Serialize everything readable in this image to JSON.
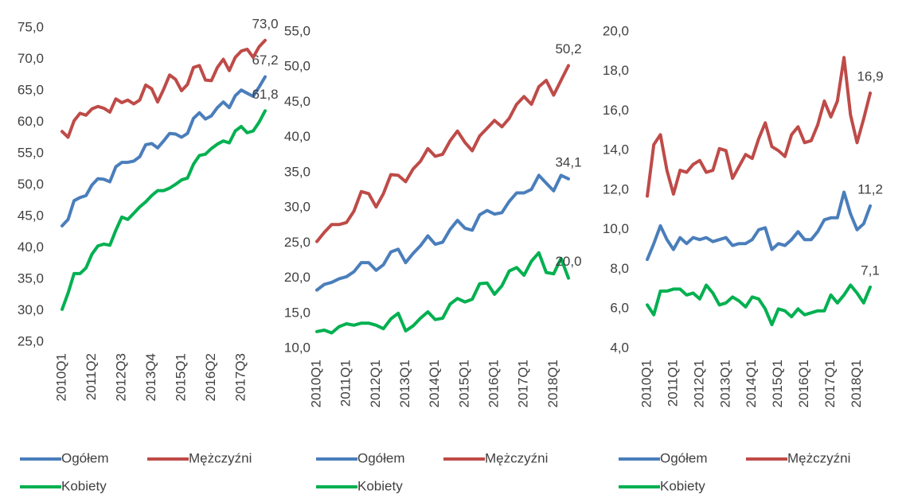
{
  "chart_data": [
    {
      "type": "line",
      "categories": [
        "2010Q1",
        null,
        null,
        null,
        null,
        "2011Q2",
        null,
        null,
        null,
        null,
        "2012Q3",
        null,
        null,
        null,
        null,
        "2013Q4",
        null,
        null,
        null,
        null,
        "2015Q1",
        null,
        null,
        null,
        null,
        "2016Q2",
        null,
        null,
        null,
        null,
        "2017Q3",
        null,
        null,
        null,
        null
      ],
      "ylim": [
        25,
        75
      ],
      "yticks": [
        {
          "value": 25,
          "label": "25,0"
        },
        {
          "value": 30,
          "label": "30,0"
        },
        {
          "value": 35,
          "label": "35,0"
        },
        {
          "value": 40,
          "label": "40,0"
        },
        {
          "value": 45,
          "label": "45,0"
        },
        {
          "value": 50,
          "label": "50,0"
        },
        {
          "value": 55,
          "label": "55,0"
        },
        {
          "value": 60,
          "label": "60,0"
        },
        {
          "value": 65,
          "label": "65,0"
        },
        {
          "value": 70,
          "label": "70,0"
        },
        {
          "value": 75,
          "label": "75,0"
        }
      ],
      "series": [
        {
          "name": "Ogółem",
          "color": "#4a7ebb",
          "values": [
            43.5,
            44.5,
            47.5,
            48,
            48.3,
            50,
            51,
            50.9,
            50.5,
            52.9,
            53.6,
            53.6,
            53.8,
            54.5,
            56.4,
            56.6,
            55.9,
            57,
            58.2,
            58.1,
            57.6,
            58.2,
            60.6,
            61.5,
            60.5,
            61,
            62.3,
            63.2,
            62.3,
            64.2,
            65.1,
            64.6,
            64.1,
            65.6,
            67.2
          ],
          "value_labels": [
            null,
            null,
            null,
            null,
            null,
            null,
            null,
            null,
            null,
            null,
            null,
            null,
            null,
            null,
            null,
            null,
            null,
            null,
            null,
            null,
            null,
            null,
            null,
            null,
            null,
            null,
            null,
            null,
            null,
            null,
            null,
            null,
            null,
            null,
            "67,2"
          ]
        },
        {
          "name": "Mężczyźni",
          "color": "#be4b48",
          "values": [
            58.5,
            57.6,
            60.2,
            61.4,
            61.1,
            62.1,
            62.5,
            62.2,
            61.6,
            63.7,
            63.1,
            63.5,
            62.9,
            63.5,
            65.9,
            65.3,
            63.2,
            65.2,
            67.5,
            66.8,
            65,
            66,
            68.7,
            69,
            66.7,
            66.6,
            68.7,
            70,
            68.2,
            70.3,
            71.3,
            71.6,
            70.3,
            72,
            73.0
          ],
          "value_labels": [
            null,
            null,
            null,
            null,
            null,
            null,
            null,
            null,
            null,
            null,
            null,
            null,
            null,
            null,
            null,
            null,
            null,
            null,
            null,
            null,
            null,
            null,
            null,
            null,
            null,
            null,
            null,
            null,
            null,
            null,
            null,
            null,
            null,
            null,
            "73,0"
          ]
        },
        {
          "name": "Kobiety",
          "color": "#00b050",
          "values": [
            30.2,
            32.8,
            35.9,
            35.9,
            36.8,
            39,
            40.3,
            40.6,
            40.4,
            42.8,
            44.9,
            44.5,
            45.5,
            46.5,
            47.3,
            48.3,
            49.1,
            49.1,
            49.5,
            50.1,
            50.8,
            51.1,
            53.3,
            54.7,
            54.9,
            55.8,
            56.5,
            57,
            56.7,
            58.6,
            59.3,
            58.3,
            58.6,
            60,
            61.8
          ],
          "value_labels": [
            null,
            null,
            null,
            null,
            null,
            null,
            null,
            null,
            null,
            null,
            null,
            null,
            null,
            null,
            null,
            null,
            null,
            null,
            null,
            null,
            null,
            null,
            null,
            null,
            null,
            null,
            null,
            null,
            null,
            null,
            null,
            null,
            null,
            null,
            "61,8"
          ]
        }
      ]
    },
    {
      "type": "line",
      "categories": [
        "2010Q1",
        null,
        null,
        null,
        "2011Q1",
        null,
        null,
        null,
        "2012Q1",
        null,
        null,
        null,
        "2013Q1",
        null,
        null,
        null,
        "2014Q1",
        null,
        null,
        null,
        "2015Q1",
        null,
        null,
        null,
        "2016Q1",
        null,
        null,
        null,
        "2017Q1",
        null,
        null,
        null,
        "2018Q1",
        null,
        null
      ],
      "ylim": [
        10,
        55
      ],
      "yticks": [
        {
          "value": 10,
          "label": "10,0"
        },
        {
          "value": 15,
          "label": "15,0"
        },
        {
          "value": 20,
          "label": "20,0"
        },
        {
          "value": 25,
          "label": "25,0"
        },
        {
          "value": 30,
          "label": "30,0"
        },
        {
          "value": 35,
          "label": "35,0"
        },
        {
          "value": 40,
          "label": "40,0"
        },
        {
          "value": 45,
          "label": "45,0"
        },
        {
          "value": 50,
          "label": "50,0"
        },
        {
          "value": 55,
          "label": "55,0"
        }
      ],
      "series": [
        {
          "name": "Ogółem",
          "color": "#4a7ebb",
          "values": [
            18.3,
            19.1,
            19.4,
            19.9,
            20.2,
            20.9,
            22.2,
            22.2,
            21.1,
            21.9,
            23.7,
            24.1,
            22.2,
            23.5,
            24.6,
            26,
            24.8,
            25.1,
            26.9,
            28.2,
            27.1,
            26.8,
            29,
            29.6,
            29.1,
            29.3,
            30.9,
            32.1,
            32.1,
            32.6,
            34.6,
            33.5,
            32.4,
            34.6,
            34.1
          ],
          "value_labels": [
            null,
            null,
            null,
            null,
            null,
            null,
            null,
            null,
            null,
            null,
            null,
            null,
            null,
            null,
            null,
            null,
            null,
            null,
            null,
            null,
            null,
            null,
            null,
            null,
            null,
            null,
            null,
            null,
            null,
            null,
            null,
            null,
            null,
            null,
            "34,1"
          ]
        },
        {
          "name": "Mężczyźni",
          "color": "#be4b48",
          "values": [
            25.2,
            26.5,
            27.6,
            27.6,
            27.9,
            29.5,
            32.3,
            32,
            30.1,
            32,
            34.7,
            34.6,
            33.7,
            35.5,
            36.6,
            38.4,
            37.3,
            37.6,
            39.5,
            40.9,
            39.3,
            38.1,
            40.2,
            41.3,
            42.4,
            41.5,
            42.7,
            44.7,
            45.8,
            44.7,
            47.2,
            48.1,
            46,
            48.1,
            50.2
          ],
          "value_labels": [
            null,
            null,
            null,
            null,
            null,
            null,
            null,
            null,
            null,
            null,
            null,
            null,
            null,
            null,
            null,
            null,
            null,
            null,
            null,
            null,
            null,
            null,
            null,
            null,
            null,
            null,
            null,
            null,
            null,
            null,
            null,
            null,
            null,
            null,
            "50,2"
          ]
        },
        {
          "name": "Kobiety",
          "color": "#00b050",
          "values": [
            12.4,
            12.6,
            12.2,
            13.1,
            13.5,
            13.3,
            13.6,
            13.6,
            13.3,
            12.8,
            14.2,
            15,
            12.5,
            13.2,
            14.3,
            15.2,
            14.1,
            14.3,
            16.3,
            17.1,
            16.6,
            17,
            19.2,
            19.3,
            17.7,
            18.9,
            21,
            21.5,
            20.4,
            22.4,
            23.6,
            20.8,
            20.6,
            22.8,
            20.0
          ],
          "value_labels": [
            null,
            null,
            null,
            null,
            null,
            null,
            null,
            null,
            null,
            null,
            null,
            null,
            null,
            null,
            null,
            null,
            null,
            null,
            null,
            null,
            null,
            null,
            null,
            null,
            null,
            null,
            null,
            null,
            null,
            null,
            null,
            null,
            null,
            null,
            "20,0"
          ]
        }
      ]
    },
    {
      "type": "line",
      "categories": [
        "2010Q1",
        null,
        null,
        null,
        "2011Q1",
        null,
        null,
        null,
        "2012Q1",
        null,
        null,
        null,
        "2013Q1",
        null,
        null,
        null,
        "2014Q1",
        null,
        null,
        null,
        "2015Q1",
        null,
        null,
        null,
        "2016Q1",
        null,
        null,
        null,
        "2017Q1",
        null,
        null,
        null,
        "2018Q1",
        null,
        null
      ],
      "ylim": [
        4,
        20
      ],
      "yticks": [
        {
          "value": 4,
          "label": "4,0"
        },
        {
          "value": 6,
          "label": "6,0"
        },
        {
          "value": 8,
          "label": "8,0"
        },
        {
          "value": 10,
          "label": "10,0"
        },
        {
          "value": 12,
          "label": "12,0"
        },
        {
          "value": 14,
          "label": "14,0"
        },
        {
          "value": 16,
          "label": "16,0"
        },
        {
          "value": 18,
          "label": "18,0"
        },
        {
          "value": 20,
          "label": "20,0"
        }
      ],
      "series": [
        {
          "name": "Ogółem",
          "color": "#4a7ebb",
          "values": [
            8.5,
            9.3,
            10.2,
            9.5,
            9,
            9.6,
            9.3,
            9.6,
            9.5,
            9.6,
            9.4,
            9.5,
            9.6,
            9.2,
            9.3,
            9.3,
            9.5,
            10,
            10.1,
            9,
            9.3,
            9.2,
            9.5,
            9.9,
            9.5,
            9.5,
            9.9,
            10.5,
            10.6,
            10.6,
            11.9,
            10.8,
            10,
            10.3,
            11.2
          ],
          "value_labels": [
            null,
            null,
            null,
            null,
            null,
            null,
            null,
            null,
            null,
            null,
            null,
            null,
            null,
            null,
            null,
            null,
            null,
            null,
            null,
            null,
            null,
            null,
            null,
            null,
            null,
            null,
            null,
            null,
            null,
            null,
            null,
            null,
            null,
            null,
            "11,2"
          ]
        },
        {
          "name": "Mężczyźni",
          "color": "#be4b48",
          "values": [
            11.7,
            14.3,
            14.8,
            13,
            11.8,
            13,
            12.9,
            13.3,
            13.5,
            12.9,
            13,
            14.1,
            14,
            12.6,
            13.2,
            13.8,
            13.6,
            14.6,
            15.4,
            14.2,
            14,
            13.7,
            14.8,
            15.2,
            14.4,
            14.5,
            15.3,
            16.5,
            15.7,
            16.5,
            18.7,
            15.8,
            14.4,
            15.6,
            16.9
          ],
          "value_labels": [
            null,
            null,
            null,
            null,
            null,
            null,
            null,
            null,
            null,
            null,
            null,
            null,
            null,
            null,
            null,
            null,
            null,
            null,
            null,
            null,
            null,
            null,
            null,
            null,
            null,
            null,
            null,
            null,
            null,
            null,
            null,
            null,
            null,
            null,
            "16,9"
          ]
        },
        {
          "name": "Kobiety",
          "color": "#00b050",
          "values": [
            6.2,
            5.7,
            6.9,
            6.9,
            7,
            7,
            6.7,
            6.8,
            6.5,
            7.2,
            6.8,
            6.2,
            6.3,
            6.6,
            6.4,
            6.1,
            6.6,
            6.5,
            6,
            5.2,
            6,
            5.9,
            5.6,
            6,
            5.7,
            5.8,
            5.9,
            5.9,
            6.7,
            6.3,
            6.7,
            7.2,
            6.8,
            6.3,
            7.1
          ],
          "value_labels": [
            null,
            null,
            null,
            null,
            null,
            null,
            null,
            null,
            null,
            null,
            null,
            null,
            null,
            null,
            null,
            null,
            null,
            null,
            null,
            null,
            null,
            null,
            null,
            null,
            null,
            null,
            null,
            null,
            null,
            null,
            null,
            null,
            null,
            null,
            "7,1"
          ]
        }
      ]
    }
  ]
}
